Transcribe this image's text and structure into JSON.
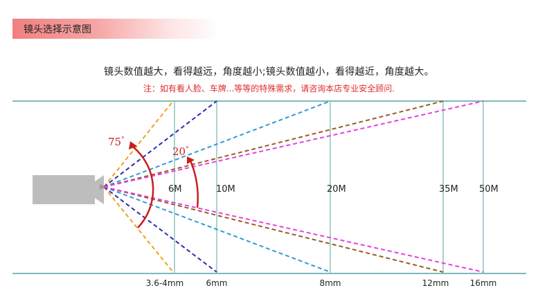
{
  "header": {
    "title": "镜头选择示意图"
  },
  "caption": {
    "main": "镜头数值越大，看得越远，角度越小;镜头数值越小，看得越近，角度越大。",
    "note": "注：如有看人脸、车牌...等等的特殊需求，请咨询本店专业安全顾问."
  },
  "angles": {
    "wide": "75",
    "narrow": "20",
    "degree_mark": "°",
    "color": "#c81e1e"
  },
  "distances": [
    "6M",
    "10M",
    "20M",
    "35M",
    "50M"
  ],
  "lenses": [
    {
      "label": "3.6-4mm",
      "color": "#f0a020"
    },
    {
      "label": "6mm",
      "color": "#2b2bb0"
    },
    {
      "label": "8mm",
      "color": "#2e9bd6"
    },
    {
      "label": "12mm",
      "color": "#9a5a22"
    },
    {
      "label": "16mm",
      "color": "#e43fe4"
    }
  ],
  "colors": {
    "guide_lines": "#7fb8b8",
    "camera": "#bdbdbd",
    "header_band": "#f08080"
  }
}
